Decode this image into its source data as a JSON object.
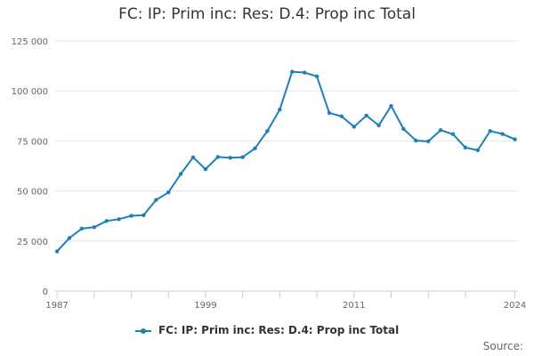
{
  "header": {
    "title": "FC: IP: Prim inc: Res: D.4: Prop inc Total"
  },
  "legend": {
    "label": "FC: IP: Prim inc: Res: D.4: Prop inc Total"
  },
  "footer": {
    "source": "Source:"
  },
  "colors": {
    "series": "#1f7fb7",
    "grid": "#e6e6e6",
    "axis": "#cccccc"
  },
  "chart_data": {
    "type": "line",
    "title": "FC: IP: Prim inc: Res: D.4: Prop inc Total",
    "xlabel": "",
    "ylabel": "",
    "x": [
      1987,
      1988,
      1989,
      1990,
      1991,
      1992,
      1993,
      1994,
      1995,
      1996,
      1997,
      1998,
      1999,
      2000,
      2001,
      2002,
      2003,
      2004,
      2005,
      2006,
      2007,
      2008,
      2009,
      2010,
      2011,
      2012,
      2013,
      2014,
      2015,
      2016,
      2017,
      2018,
      2019,
      2020,
      2021,
      2022,
      2023,
      2024
    ],
    "series": [
      {
        "name": "FC: IP: Prim inc: Res: D.4: Prop inc Total",
        "values": [
          19800,
          26500,
          31200,
          31900,
          35000,
          35900,
          37600,
          37900,
          45500,
          49300,
          58500,
          66800,
          60900,
          67000,
          66600,
          66900,
          71300,
          80000,
          90700,
          109600,
          109200,
          107300,
          89000,
          87300,
          82100,
          87700,
          82800,
          92500,
          81000,
          75200,
          74800,
          80400,
          78400,
          71700,
          70400,
          80000,
          78500,
          75800
        ]
      }
    ],
    "xlim": [
      1986.85,
      2024.25
    ],
    "ylim": [
      0,
      125000
    ],
    "y_ticks": [
      0,
      25000,
      50000,
      75000,
      100000,
      125000
    ],
    "y_tick_labels": [
      "0",
      "25 000",
      "50 000",
      "75 000",
      "100 000",
      "125 000"
    ],
    "x_tick_labels": [
      "1987",
      "1999",
      "2011",
      "2024"
    ],
    "x_tick_years": [
      1987,
      1999,
      2011,
      2024
    ],
    "x_minor_ticks": [
      1987,
      1990,
      1993,
      1996,
      1999,
      2002,
      2005,
      2008,
      2011,
      2014,
      2017,
      2020,
      2024
    ],
    "grid": true,
    "legend_position": "bottom-center"
  }
}
